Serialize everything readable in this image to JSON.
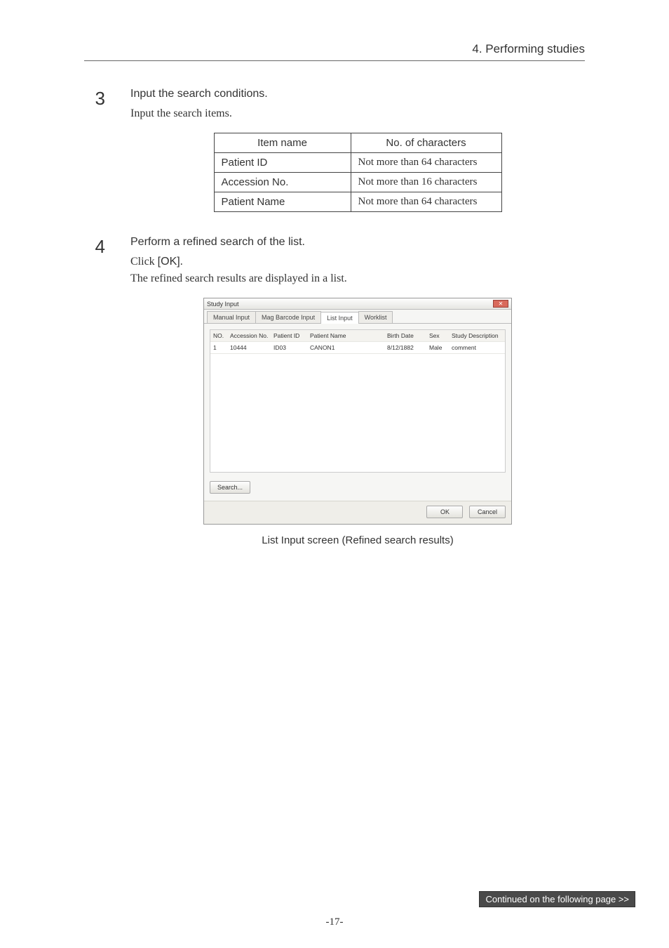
{
  "header": {
    "section": "4. Performing studies"
  },
  "steps": [
    {
      "num": "3",
      "title": "Input the search conditions.",
      "text": "Input the search items."
    },
    {
      "num": "4",
      "title": "Perform a refined search of the list.",
      "click_line_pre": "Click ",
      "click_btn": "[OK]",
      "click_line_post": ".",
      "text2": "The refined search results are displayed in a list."
    }
  ],
  "char_table": {
    "headers": [
      "Item name",
      "No. of characters"
    ],
    "rows": [
      [
        "Patient ID",
        "Not more than 64 characters"
      ],
      [
        "Accession No.",
        "Not more than 16 characters"
      ],
      [
        "Patient Name",
        "Not more than 64 characters"
      ]
    ]
  },
  "study_window": {
    "title": "Study Input",
    "tabs": [
      "Manual Input",
      "Mag Barcode Input",
      "List Input",
      "Worklist"
    ],
    "active_tab": 2,
    "columns": [
      "NO.",
      "Accession No.",
      "Patient ID",
      "Patient Name",
      "Birth Date",
      "Sex",
      "Study Description"
    ],
    "row": {
      "no": "1",
      "acc": "10444",
      "pid": "ID03",
      "name": "CANON1",
      "bd": "8/12/1882",
      "sex": "Male",
      "desc": "comment"
    },
    "search_btn": "Search...",
    "ok_btn": "OK",
    "cancel_btn": "Cancel"
  },
  "caption": "List Input screen (Refined search results)",
  "footer": {
    "continued": "Continued on the following page >>",
    "page_num": "-17-"
  }
}
